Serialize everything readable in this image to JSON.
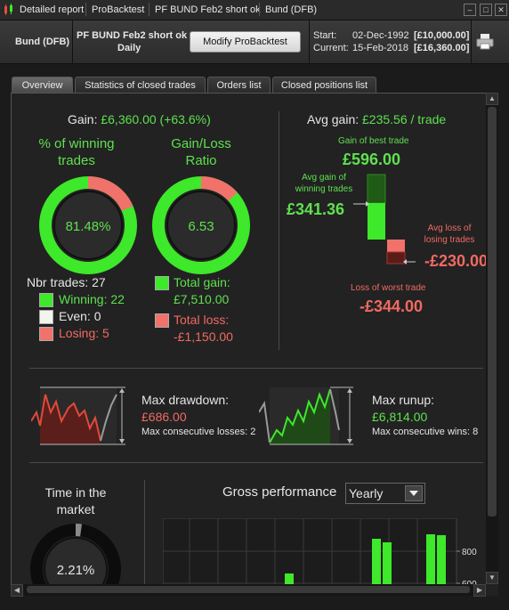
{
  "window": {
    "breadcrumbs": [
      "Detailed report",
      "ProBacktest",
      "PF BUND Feb2 short ok",
      "Bund (DFB)"
    ]
  },
  "infobar": {
    "instrument": "Bund (DFB)",
    "strategy_name": "PF BUND Feb2 short ok",
    "timeframe": "Daily",
    "modify_label": "Modify ProBacktest",
    "start_label": "Start:",
    "start_date": "02-Dec-1992",
    "start_value": "[£10,000.00]",
    "current_label": "Current:",
    "current_date": "15-Feb-2018",
    "current_value": "[£16,360.00]"
  },
  "tabs": [
    "Overview",
    "Statistics of closed trades",
    "Orders list",
    "Closed positions list"
  ],
  "overview": {
    "gain_label": "Gain:",
    "gain_value": "£6,360.00 (+63.6%)",
    "pct_winning_title_1": "% of winning",
    "pct_winning_title_2": "trades",
    "pct_winning_value": "81.48%",
    "pct_winning_fraction": 0.8148,
    "gain_loss_title_1": "Gain/Loss",
    "gain_loss_title_2": "Ratio",
    "gain_loss_value": "6.53",
    "gain_loss_green_fraction": 0.867,
    "nbr_trades": "Nbr trades: 27",
    "winning": "Winning: 22",
    "even": "Even: 0",
    "losing": "Losing: 5",
    "total_gain_label": "Total gain:",
    "total_gain_value": "£7,510.00",
    "total_loss_label": "Total loss:",
    "total_loss_value": "-£1,150.00",
    "avg_gain_label": "Avg gain:",
    "avg_gain_value": "£235.56 / trade",
    "best_trade_label": "Gain of best trade",
    "best_trade_value": "£596.00",
    "avg_win_label_1": "Avg gain of",
    "avg_win_label_2": "winning trades",
    "avg_win_value": "£341.36",
    "avg_loss_label_1": "Avg loss of",
    "avg_loss_label_2": "losing trades",
    "avg_loss_value": "-£230.00",
    "worst_trade_label": "Loss of worst trade",
    "worst_trade_value": "-£344.00",
    "max_drawdown_label": "Max drawdown:",
    "max_drawdown_value": "£686.00",
    "max_consec_losses": "Max consecutive losses: 2",
    "max_runup_label": "Max runup:",
    "max_runup_value": "£6,814.00",
    "max_consec_wins": "Max consecutive wins: 8",
    "time_in_market_1": "Time in the",
    "time_in_market_2": "market",
    "time_in_market_value": "2.21%",
    "time_in_market_fraction": 0.0221,
    "gross_perf_label": "Gross performance",
    "period_selected": "Yearly"
  },
  "chart_data": {
    "type": "bar",
    "title": "Gross performance",
    "y_ticks": [
      800,
      600
    ],
    "series_color": "#3ee82a"
  },
  "colors": {
    "gain_green": "#5fe04f",
    "loss_red": "#f06a62",
    "ring_green": "#3ee82a",
    "ring_red": "#f0726a"
  }
}
